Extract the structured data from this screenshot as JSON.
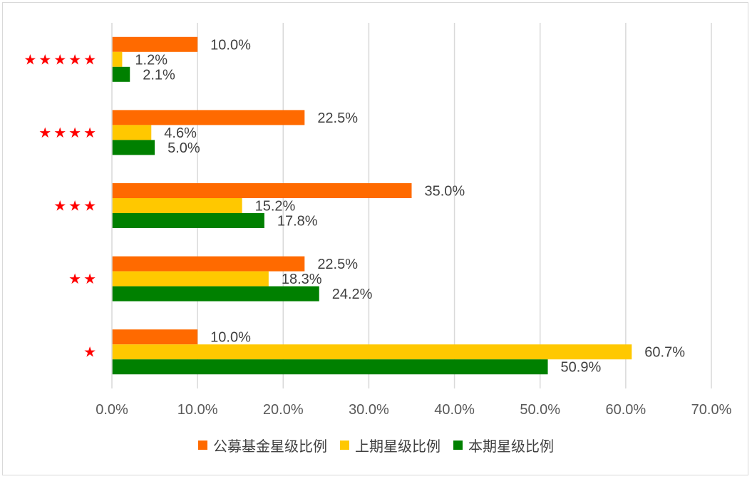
{
  "chart_data": {
    "type": "bar",
    "orientation": "horizontal",
    "categories": [
      "★★★★★",
      "★★★★",
      "★★★",
      "★★",
      "★"
    ],
    "series": [
      {
        "name": "公募基金星级比例",
        "values": [
          10.0,
          22.5,
          35.0,
          22.5,
          10.0
        ],
        "labels": [
          "10.0%",
          "22.5%",
          "35.0%",
          "22.5%",
          "10.0%"
        ],
        "color": "#ff6a00"
      },
      {
        "name": "上期星级比例",
        "values": [
          1.2,
          4.6,
          15.2,
          18.3,
          60.7
        ],
        "labels": [
          "1.2%",
          "4.6%",
          "15.2%",
          "18.3%",
          "60.7%"
        ],
        "color": "#ffc800"
      },
      {
        "name": "本期星级比例",
        "values": [
          2.1,
          5.0,
          17.8,
          24.2,
          50.9
        ],
        "labels": [
          "2.1%",
          "5.0%",
          "17.8%",
          "24.2%",
          "50.9%"
        ],
        "color": "#008000"
      }
    ],
    "xlim": [
      0,
      70
    ],
    "xticks": [
      "0.0%",
      "10.0%",
      "20.0%",
      "30.0%",
      "40.0%",
      "50.0%",
      "60.0%",
      "70.0%"
    ],
    "grid": "vertical",
    "legend_position": "bottom",
    "category_label_color": "#ff0000",
    "tick_label_color": "#595959",
    "data_label_color": "#404040",
    "gridline_color": "#d9d9d9"
  }
}
